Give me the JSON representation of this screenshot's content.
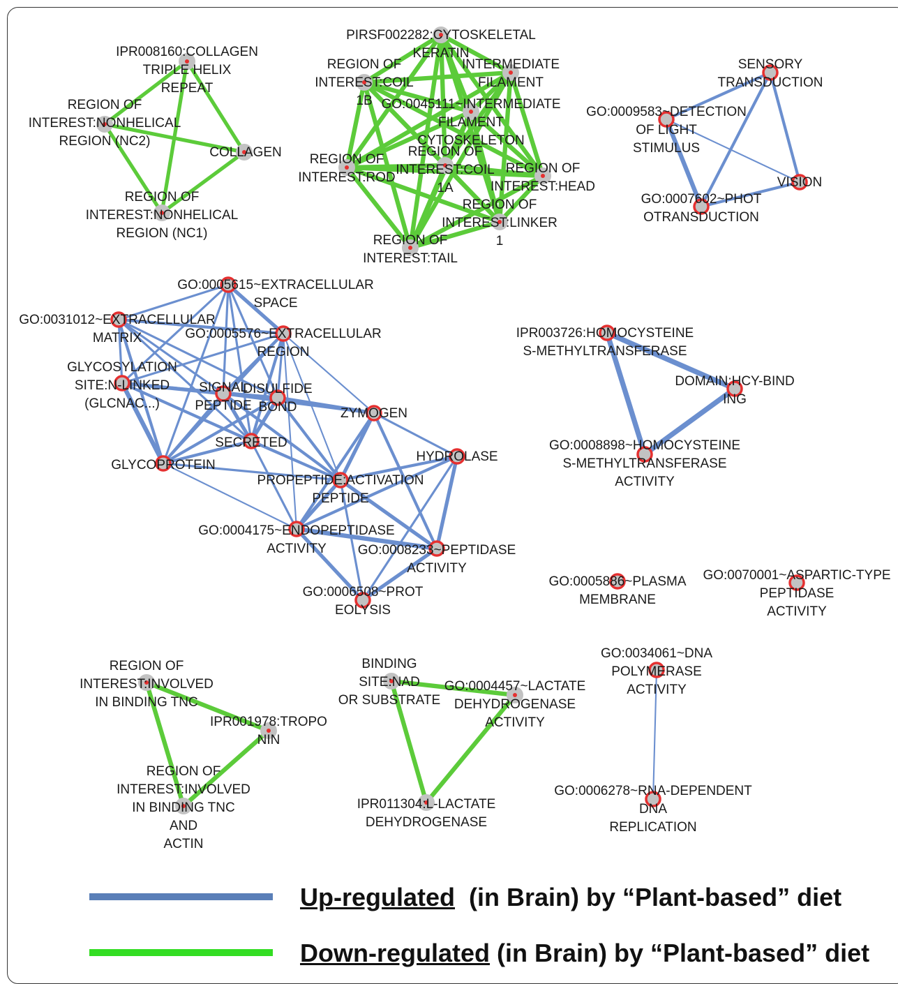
{
  "colors": {
    "up": "#6b8fcf",
    "down": "#5ccb3a",
    "node_fill": "#c2c2c2",
    "node_ring": "#e53030",
    "node_dot": "#e53030",
    "legend_up": "#5a7fb8",
    "legend_down": "#33dd22"
  },
  "nodes": [
    {
      "id": "col_triple",
      "lines": [
        "IPR008160:COLLAGEN",
        "TRIPLE HELIX",
        "REPEAT"
      ],
      "style": "gray"
    },
    {
      "id": "nc2",
      "lines": [
        "REGION OF",
        "INTEREST:NONHELICAL",
        "REGION (NC2)"
      ],
      "style": "gray"
    },
    {
      "id": "collagen",
      "lines": [
        "COLLAGEN"
      ],
      "style": "gray"
    },
    {
      "id": "nc1",
      "lines": [
        "REGION OF",
        "INTEREST:NONHELICAL",
        "REGION (NC1)"
      ],
      "style": "gray"
    },
    {
      "id": "pirsf",
      "lines": [
        "PIRSF002282:CYTOSKELETAL",
        "KERATIN"
      ],
      "style": "gray"
    },
    {
      "id": "coil1b",
      "lines": [
        "REGION OF",
        "INTEREST:COIL",
        "1B"
      ],
      "style": "gray"
    },
    {
      "id": "interfil",
      "lines": [
        "INTERMEDIATE",
        "FILAMENT"
      ],
      "style": "gray"
    },
    {
      "id": "go45111",
      "lines": [
        "GO:0045111~INTERMEDIATE",
        "FILAMENT",
        "CYTOSKELETON"
      ],
      "style": "gray"
    },
    {
      "id": "rod",
      "lines": [
        "REGION OF",
        "INTEREST:ROD"
      ],
      "style": "gray"
    },
    {
      "id": "coil1a",
      "lines": [
        "REGION OF",
        "INTEREST:COIL",
        "1A"
      ],
      "style": "gray"
    },
    {
      "id": "head",
      "lines": [
        "REGION OF",
        "INTEREST:HEAD"
      ],
      "style": "gray"
    },
    {
      "id": "linker1",
      "lines": [
        "REGION OF",
        "INTEREST:LINKER",
        "1"
      ],
      "style": "gray"
    },
    {
      "id": "tail",
      "lines": [
        "REGION OF",
        "INTEREST:TAIL"
      ],
      "style": "gray"
    },
    {
      "id": "sensory",
      "lines": [
        "SENSORY",
        "TRANSDUCTION"
      ],
      "style": "red"
    },
    {
      "id": "go9583",
      "lines": [
        "GO:0009583~DETECTION",
        "OF LIGHT",
        "STIMULUS"
      ],
      "style": "red"
    },
    {
      "id": "vision",
      "lines": [
        "VISION"
      ],
      "style": "red"
    },
    {
      "id": "go7602",
      "lines": [
        "GO:0007602~PHOT",
        "OTRANSDUCTION"
      ],
      "style": "red"
    },
    {
      "id": "go5615",
      "lines": [
        "GO:0005615~EXTRACELLULAR",
        "SPACE"
      ],
      "style": "red"
    },
    {
      "id": "go31012",
      "lines": [
        "GO:0031012~EXTRACELLULAR",
        "MATRIX"
      ],
      "style": "red"
    },
    {
      "id": "go5576",
      "lines": [
        "GO:0005576~EXTRACELLULAR",
        "REGION"
      ],
      "style": "red"
    },
    {
      "id": "glycosite",
      "lines": [
        "GLYCOSYLATION",
        "SITE:N-LINKED",
        "(GLCNAC...)"
      ],
      "style": "red"
    },
    {
      "id": "signal",
      "lines": [
        "SIGNAL",
        "PEPTIDE"
      ],
      "style": "red"
    },
    {
      "id": "disulfide",
      "lines": [
        "DISULFIDE",
        "BOND"
      ],
      "style": "red"
    },
    {
      "id": "zymogen",
      "lines": [
        "ZYMOGEN"
      ],
      "style": "red"
    },
    {
      "id": "secreted",
      "lines": [
        "SECRETED"
      ],
      "style": "red"
    },
    {
      "id": "hydrolase",
      "lines": [
        "HYDROLASE"
      ],
      "style": "red"
    },
    {
      "id": "glycoprotein",
      "lines": [
        "GLYCOPROTEIN"
      ],
      "style": "red"
    },
    {
      "id": "propeptide",
      "lines": [
        "PROPEPTIDE:ACTIVATION",
        "PEPTIDE"
      ],
      "style": "red"
    },
    {
      "id": "go4175",
      "lines": [
        "GO:0004175~ENDOPEPTIDASE",
        "ACTIVITY"
      ],
      "style": "red"
    },
    {
      "id": "go8233",
      "lines": [
        "GO:0008233~PEPTIDASE",
        "ACTIVITY"
      ],
      "style": "red"
    },
    {
      "id": "go6508",
      "lines": [
        "GO:0006508~PROT",
        "EOLYSIS"
      ],
      "style": "red"
    },
    {
      "id": "ipr3726",
      "lines": [
        "IPR003726:HOMOCYSTEINE",
        "S-METHYLTRANSFERASE"
      ],
      "style": "red"
    },
    {
      "id": "hcybind",
      "lines": [
        "DOMAIN:HCY-BIND",
        "ING"
      ],
      "style": "red"
    },
    {
      "id": "go8898",
      "lines": [
        "GO:0008898~HOMOCYSTEINE",
        "S-METHYLTRANSFERASE",
        "ACTIVITY"
      ],
      "style": "red"
    },
    {
      "id": "go5886",
      "lines": [
        "GO:0005886~PLASMA",
        "MEMBRANE"
      ],
      "style": "red"
    },
    {
      "id": "go70001",
      "lines": [
        "GO:0070001~ASPARTIC-TYPE",
        "PEPTIDASE",
        "ACTIVITY"
      ],
      "style": "red"
    },
    {
      "id": "tnc",
      "lines": [
        "REGION OF",
        "INTEREST:INVOLVED",
        "IN BINDING TNC"
      ],
      "style": "gray"
    },
    {
      "id": "troponin",
      "lines": [
        "IPR001978:TROPO",
        "NIN"
      ],
      "style": "gray"
    },
    {
      "id": "tncactin",
      "lines": [
        "REGION OF",
        "INTEREST:INVOLVED",
        "IN BINDING TNC",
        "AND",
        "ACTIN"
      ],
      "style": "gray"
    },
    {
      "id": "nadsite",
      "lines": [
        "BINDING",
        "SITE:NAD",
        "OR SUBSTRATE"
      ],
      "style": "gray"
    },
    {
      "id": "go4457",
      "lines": [
        "GO:0004457~LACTATE",
        "DEHYDROGENASE",
        "ACTIVITY"
      ],
      "style": "gray"
    },
    {
      "id": "ipr11304",
      "lines": [
        "IPR011304:L-LACTATE",
        "DEHYDROGENASE"
      ],
      "style": "gray"
    },
    {
      "id": "go34061",
      "lines": [
        "GO:0034061~DNA",
        "POLYMERASE",
        "ACTIVITY"
      ],
      "style": "red"
    },
    {
      "id": "go6278",
      "lines": [
        "GO:0006278~RNA-DEPENDENT",
        "DNA",
        "REPLICATION"
      ],
      "style": "red"
    }
  ],
  "edges": [
    {
      "source": "col_triple",
      "target": "nc2",
      "reg": "down",
      "weight": 5
    },
    {
      "source": "col_triple",
      "target": "collagen",
      "reg": "down",
      "weight": 5
    },
    {
      "source": "col_triple",
      "target": "nc1",
      "reg": "down",
      "weight": 5
    },
    {
      "source": "nc2",
      "target": "collagen",
      "reg": "down",
      "weight": 5
    },
    {
      "source": "nc2",
      "target": "nc1",
      "reg": "down",
      "weight": 5
    },
    {
      "source": "collagen",
      "target": "nc1",
      "reg": "down",
      "weight": 5
    },
    {
      "source": "pirsf",
      "target": "coil1b",
      "reg": "down",
      "weight": 6
    },
    {
      "source": "pirsf",
      "target": "interfil",
      "reg": "down",
      "weight": 6
    },
    {
      "source": "pirsf",
      "target": "go45111",
      "reg": "down",
      "weight": 6
    },
    {
      "source": "pirsf",
      "target": "rod",
      "reg": "down",
      "weight": 6
    },
    {
      "source": "pirsf",
      "target": "coil1a",
      "reg": "down",
      "weight": 6
    },
    {
      "source": "pirsf",
      "target": "head",
      "reg": "down",
      "weight": 6
    },
    {
      "source": "pirsf",
      "target": "linker1",
      "reg": "down",
      "weight": 6
    },
    {
      "source": "pirsf",
      "target": "tail",
      "reg": "down",
      "weight": 6
    },
    {
      "source": "coil1b",
      "target": "interfil",
      "reg": "down",
      "weight": 6
    },
    {
      "source": "coil1b",
      "target": "go45111",
      "reg": "down",
      "weight": 6
    },
    {
      "source": "coil1b",
      "target": "rod",
      "reg": "down",
      "weight": 6
    },
    {
      "source": "coil1b",
      "target": "coil1a",
      "reg": "down",
      "weight": 6
    },
    {
      "source": "coil1b",
      "target": "head",
      "reg": "down",
      "weight": 6
    },
    {
      "source": "coil1b",
      "target": "linker1",
      "reg": "down",
      "weight": 6
    },
    {
      "source": "coil1b",
      "target": "tail",
      "reg": "down",
      "weight": 6
    },
    {
      "source": "interfil",
      "target": "go45111",
      "reg": "down",
      "weight": 6
    },
    {
      "source": "interfil",
      "target": "rod",
      "reg": "down",
      "weight": 6
    },
    {
      "source": "interfil",
      "target": "coil1a",
      "reg": "down",
      "weight": 6
    },
    {
      "source": "interfil",
      "target": "head",
      "reg": "down",
      "weight": 6
    },
    {
      "source": "interfil",
      "target": "linker1",
      "reg": "down",
      "weight": 6
    },
    {
      "source": "interfil",
      "target": "tail",
      "reg": "down",
      "weight": 6
    },
    {
      "source": "go45111",
      "target": "rod",
      "reg": "down",
      "weight": 6
    },
    {
      "source": "go45111",
      "target": "coil1a",
      "reg": "down",
      "weight": 6
    },
    {
      "source": "go45111",
      "target": "head",
      "reg": "down",
      "weight": 6
    },
    {
      "source": "go45111",
      "target": "linker1",
      "reg": "down",
      "weight": 6
    },
    {
      "source": "go45111",
      "target": "tail",
      "reg": "down",
      "weight": 6
    },
    {
      "source": "rod",
      "target": "coil1a",
      "reg": "down",
      "weight": 6
    },
    {
      "source": "rod",
      "target": "head",
      "reg": "down",
      "weight": 6
    },
    {
      "source": "rod",
      "target": "linker1",
      "reg": "down",
      "weight": 6
    },
    {
      "source": "rod",
      "target": "tail",
      "reg": "down",
      "weight": 6
    },
    {
      "source": "coil1a",
      "target": "head",
      "reg": "down",
      "weight": 6
    },
    {
      "source": "coil1a",
      "target": "linker1",
      "reg": "down",
      "weight": 6
    },
    {
      "source": "coil1a",
      "target": "tail",
      "reg": "down",
      "weight": 6
    },
    {
      "source": "head",
      "target": "linker1",
      "reg": "down",
      "weight": 6
    },
    {
      "source": "head",
      "target": "tail",
      "reg": "down",
      "weight": 6
    },
    {
      "source": "linker1",
      "target": "tail",
      "reg": "down",
      "weight": 6
    },
    {
      "source": "sensory",
      "target": "go9583",
      "reg": "up",
      "weight": 4
    },
    {
      "source": "sensory",
      "target": "vision",
      "reg": "up",
      "weight": 4
    },
    {
      "source": "sensory",
      "target": "go7602",
      "reg": "up",
      "weight": 4
    },
    {
      "source": "go9583",
      "target": "go7602",
      "reg": "up",
      "weight": 6
    },
    {
      "source": "go9583",
      "target": "vision",
      "reg": "up",
      "weight": 2
    },
    {
      "source": "go7602",
      "target": "vision",
      "reg": "up",
      "weight": 4
    },
    {
      "source": "go5615",
      "target": "go31012",
      "reg": "up",
      "weight": 3
    },
    {
      "source": "go5615",
      "target": "go5576",
      "reg": "up",
      "weight": 5
    },
    {
      "source": "go5615",
      "target": "glycosite",
      "reg": "up",
      "weight": 3
    },
    {
      "source": "go5615",
      "target": "signal",
      "reg": "up",
      "weight": 3
    },
    {
      "source": "go5615",
      "target": "disulfide",
      "reg": "up",
      "weight": 3
    },
    {
      "source": "go5615",
      "target": "secreted",
      "reg": "up",
      "weight": 3
    },
    {
      "source": "go5615",
      "target": "glycoprotein",
      "reg": "up",
      "weight": 3
    },
    {
      "source": "go31012",
      "target": "go5576",
      "reg": "up",
      "weight": 4
    },
    {
      "source": "go31012",
      "target": "glycosite",
      "reg": "up",
      "weight": 3
    },
    {
      "source": "go31012",
      "target": "signal",
      "reg": "up",
      "weight": 3
    },
    {
      "source": "go31012",
      "target": "disulfide",
      "reg": "up",
      "weight": 3
    },
    {
      "source": "go31012",
      "target": "secreted",
      "reg": "up",
      "weight": 3
    },
    {
      "source": "go31012",
      "target": "glycoprotein",
      "reg": "up",
      "weight": 4
    },
    {
      "source": "go5576",
      "target": "glycosite",
      "reg": "up",
      "weight": 3
    },
    {
      "source": "go5576",
      "target": "signal",
      "reg": "up",
      "weight": 4
    },
    {
      "source": "go5576",
      "target": "disulfide",
      "reg": "up",
      "weight": 3
    },
    {
      "source": "go5576",
      "target": "secreted",
      "reg": "up",
      "weight": 4
    },
    {
      "source": "go5576",
      "target": "glycoprotein",
      "reg": "up",
      "weight": 3
    },
    {
      "source": "go5576",
      "target": "zymogen",
      "reg": "up",
      "weight": 2
    },
    {
      "source": "go5576",
      "target": "propeptide",
      "reg": "up",
      "weight": 2
    },
    {
      "source": "go5576",
      "target": "go4175",
      "reg": "up",
      "weight": 2
    },
    {
      "source": "glycosite",
      "target": "signal",
      "reg": "up",
      "weight": 5
    },
    {
      "source": "glycosite",
      "target": "disulfide",
      "reg": "up",
      "weight": 4
    },
    {
      "source": "glycosite",
      "target": "secreted",
      "reg": "up",
      "weight": 4
    },
    {
      "source": "glycosite",
      "target": "glycoprotein",
      "reg": "up",
      "weight": 6
    },
    {
      "source": "glycosite",
      "target": "propeptide",
      "reg": "up",
      "weight": 3
    },
    {
      "source": "signal",
      "target": "disulfide",
      "reg": "up",
      "weight": 5
    },
    {
      "source": "signal",
      "target": "secreted",
      "reg": "up",
      "weight": 5
    },
    {
      "source": "signal",
      "target": "glycoprotein",
      "reg": "up",
      "weight": 4
    },
    {
      "source": "signal",
      "target": "propeptide",
      "reg": "up",
      "weight": 4
    },
    {
      "source": "signal",
      "target": "zymogen",
      "reg": "up",
      "weight": 4
    },
    {
      "source": "disulfide",
      "target": "secreted",
      "reg": "up",
      "weight": 5
    },
    {
      "source": "disulfide",
      "target": "glycoprotein",
      "reg": "up",
      "weight": 4
    },
    {
      "source": "disulfide",
      "target": "zymogen",
      "reg": "up",
      "weight": 5
    },
    {
      "source": "disulfide",
      "target": "propeptide",
      "reg": "up",
      "weight": 4
    },
    {
      "source": "secreted",
      "target": "glycoprotein",
      "reg": "up",
      "weight": 4
    },
    {
      "source": "secreted",
      "target": "propeptide",
      "reg": "up",
      "weight": 4
    },
    {
      "source": "secreted",
      "target": "go4175",
      "reg": "up",
      "weight": 3
    },
    {
      "source": "glycoprotein",
      "target": "propeptide",
      "reg": "up",
      "weight": 3
    },
    {
      "source": "glycoprotein",
      "target": "go4175",
      "reg": "up",
      "weight": 2
    },
    {
      "source": "zymogen",
      "target": "propeptide",
      "reg": "up",
      "weight": 5
    },
    {
      "source": "zymogen",
      "target": "go4175",
      "reg": "up",
      "weight": 4
    },
    {
      "source": "zymogen",
      "target": "go8233",
      "reg": "up",
      "weight": 4
    },
    {
      "source": "zymogen",
      "target": "hydrolase",
      "reg": "up",
      "weight": 3
    },
    {
      "source": "hydrolase",
      "target": "propeptide",
      "reg": "up",
      "weight": 4
    },
    {
      "source": "hydrolase",
      "target": "go4175",
      "reg": "up",
      "weight": 4
    },
    {
      "source": "hydrolase",
      "target": "go8233",
      "reg": "up",
      "weight": 5
    },
    {
      "source": "hydrolase",
      "target": "go6508",
      "reg": "up",
      "weight": 3
    },
    {
      "source": "propeptide",
      "target": "go4175",
      "reg": "up",
      "weight": 5
    },
    {
      "source": "propeptide",
      "target": "go8233",
      "reg": "up",
      "weight": 5
    },
    {
      "source": "propeptide",
      "target": "go6508",
      "reg": "up",
      "weight": 3
    },
    {
      "source": "go4175",
      "target": "go8233",
      "reg": "up",
      "weight": 6
    },
    {
      "source": "go4175",
      "target": "go6508",
      "reg": "up",
      "weight": 5
    },
    {
      "source": "go8233",
      "target": "go6508",
      "reg": "up",
      "weight": 5
    },
    {
      "source": "ipr3726",
      "target": "hcybind",
      "reg": "up",
      "weight": 7
    },
    {
      "source": "ipr3726",
      "target": "go8898",
      "reg": "up",
      "weight": 7
    },
    {
      "source": "hcybind",
      "target": "go8898",
      "reg": "up",
      "weight": 7
    },
    {
      "source": "tnc",
      "target": "troponin",
      "reg": "down",
      "weight": 6
    },
    {
      "source": "tnc",
      "target": "tncactin",
      "reg": "down",
      "weight": 6
    },
    {
      "source": "troponin",
      "target": "tncactin",
      "reg": "down",
      "weight": 6
    },
    {
      "source": "nadsite",
      "target": "go4457",
      "reg": "down",
      "weight": 6
    },
    {
      "source": "nadsite",
      "target": "ipr11304",
      "reg": "down",
      "weight": 6
    },
    {
      "source": "go4457",
      "target": "ipr11304",
      "reg": "down",
      "weight": 6
    },
    {
      "source": "go34061",
      "target": "go6278",
      "reg": "up",
      "weight": 2
    }
  ],
  "legend": [
    {
      "key": "up",
      "underlined": "Up-regulated",
      "rest": "  (in Brain) by “Plant-based” diet"
    },
    {
      "key": "down",
      "underlined": "Down-regulated",
      "rest": " (in Brain) by “Plant-based” diet"
    }
  ]
}
